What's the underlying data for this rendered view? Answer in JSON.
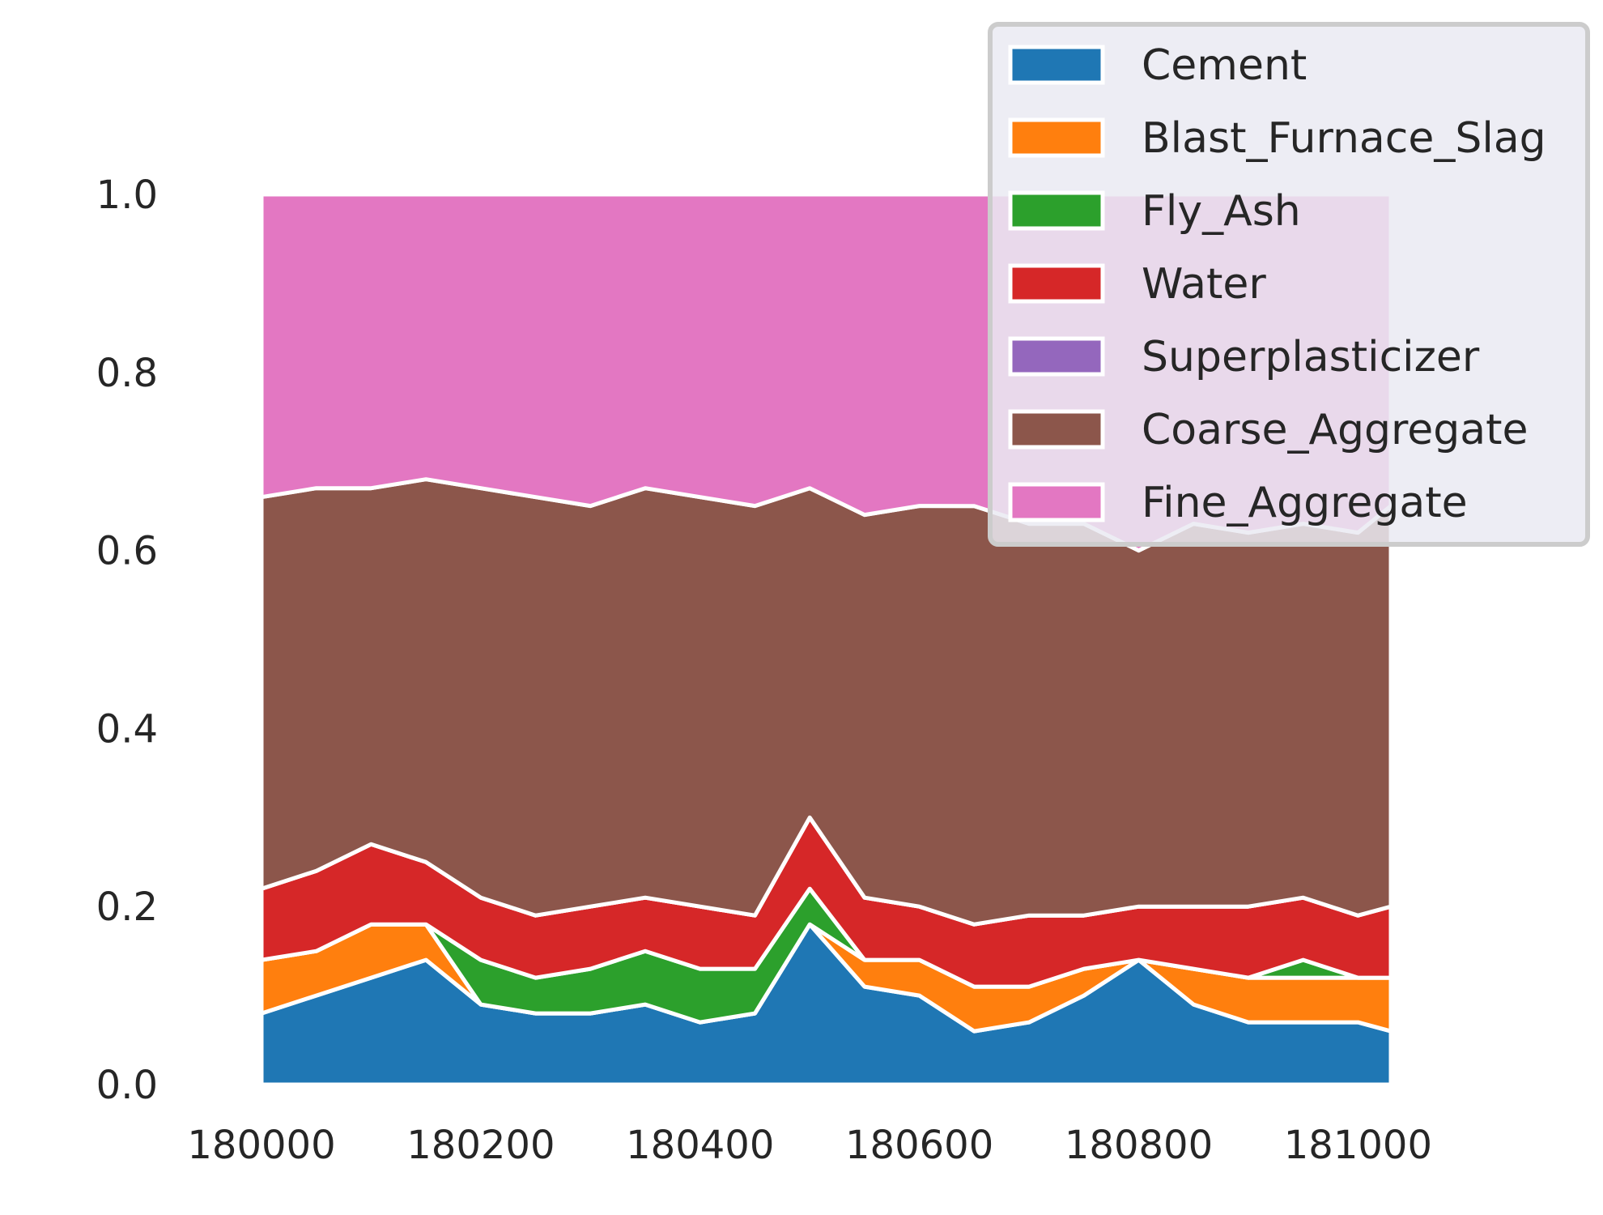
{
  "chart_data": {
    "type": "area",
    "stacked": true,
    "normalized": true,
    "title": "",
    "xlabel": "",
    "ylabel": "",
    "xlim": [
      180000,
      181030
    ],
    "ylim": [
      0.0,
      1.0
    ],
    "grid": false,
    "legend_position": "top-right",
    "x_ticks": [
      180000,
      180200,
      180400,
      180600,
      180800,
      181000
    ],
    "x_tick_labels": [
      "180000",
      "180200",
      "180400",
      "180600",
      "180800",
      "181000"
    ],
    "y_ticks": [
      0.0,
      0.2,
      0.4,
      0.6,
      0.8,
      1.0
    ],
    "y_tick_labels": [
      "0.0",
      "0.2",
      "0.4",
      "0.6",
      "0.8",
      "1.0"
    ],
    "x": [
      180000,
      180050,
      180100,
      180150,
      180200,
      180250,
      180300,
      180350,
      180400,
      180450,
      180500,
      180550,
      180600,
      180650,
      180700,
      180750,
      180800,
      180850,
      180900,
      180950,
      181000,
      181030
    ],
    "series": [
      {
        "name": "Cement",
        "color": "#1f77b4",
        "values": [
          0.08,
          0.1,
          0.12,
          0.14,
          0.09,
          0.08,
          0.08,
          0.09,
          0.07,
          0.08,
          0.18,
          0.11,
          0.1,
          0.06,
          0.07,
          0.1,
          0.14,
          0.09,
          0.07,
          0.07,
          0.07,
          0.06
        ]
      },
      {
        "name": "Blast_Furnace_Slag",
        "color": "#ff7f0e",
        "values": [
          0.06,
          0.05,
          0.06,
          0.04,
          0.0,
          0.0,
          0.0,
          0.0,
          0.0,
          0.0,
          0.0,
          0.03,
          0.04,
          0.05,
          0.04,
          0.03,
          0.0,
          0.04,
          0.05,
          0.05,
          0.05,
          0.06
        ]
      },
      {
        "name": "Fly_Ash",
        "color": "#2ca02c",
        "values": [
          0.0,
          0.0,
          0.0,
          0.0,
          0.05,
          0.04,
          0.05,
          0.06,
          0.06,
          0.05,
          0.04,
          0.0,
          0.0,
          0.0,
          0.0,
          0.0,
          0.0,
          0.0,
          0.0,
          0.02,
          0.0,
          0.0
        ]
      },
      {
        "name": "Water",
        "color": "#d62728",
        "values": [
          0.08,
          0.09,
          0.09,
          0.07,
          0.07,
          0.07,
          0.07,
          0.06,
          0.07,
          0.06,
          0.08,
          0.07,
          0.06,
          0.07,
          0.08,
          0.06,
          0.06,
          0.07,
          0.08,
          0.07,
          0.07,
          0.08
        ]
      },
      {
        "name": "Superplasticizer",
        "color": "#9467bd",
        "values": [
          0.0,
          0.0,
          0.0,
          0.0,
          0.0,
          0.0,
          0.0,
          0.0,
          0.0,
          0.0,
          0.0,
          0.0,
          0.0,
          0.0,
          0.0,
          0.0,
          0.0,
          0.0,
          0.0,
          0.0,
          0.0,
          0.0
        ]
      },
      {
        "name": "Coarse_Aggregate",
        "color": "#8c564b",
        "values": [
          0.44,
          0.43,
          0.4,
          0.43,
          0.46,
          0.47,
          0.45,
          0.46,
          0.46,
          0.46,
          0.37,
          0.43,
          0.45,
          0.47,
          0.44,
          0.44,
          0.4,
          0.43,
          0.42,
          0.42,
          0.43,
          0.45
        ]
      },
      {
        "name": "Fine_Aggregate",
        "color": "#e377c2",
        "values": [
          0.34,
          0.33,
          0.33,
          0.32,
          0.33,
          0.34,
          0.35,
          0.33,
          0.34,
          0.35,
          0.33,
          0.36,
          0.35,
          0.35,
          0.37,
          0.37,
          0.4,
          0.37,
          0.38,
          0.37,
          0.38,
          0.35
        ]
      }
    ]
  }
}
